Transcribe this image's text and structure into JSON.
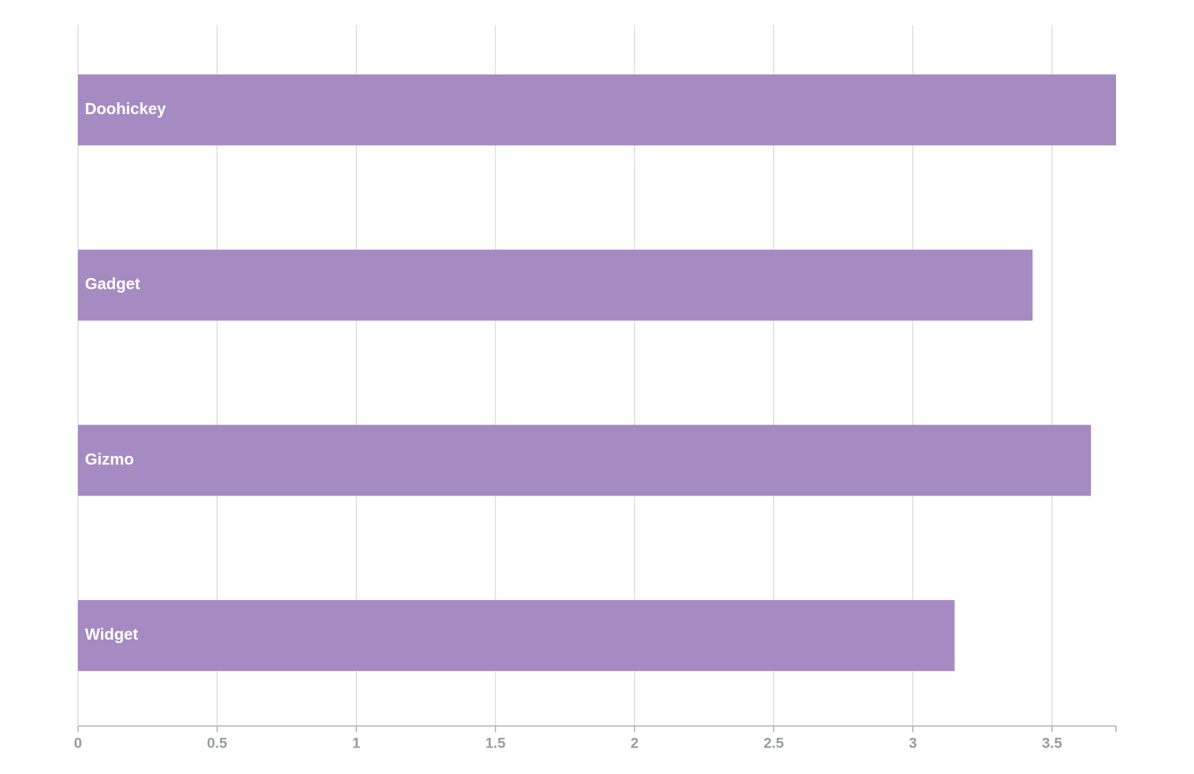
{
  "chart_data": {
    "type": "bar",
    "orientation": "horizontal",
    "categories": [
      "Doohickey",
      "Gadget",
      "Gizmo",
      "Widget"
    ],
    "values": [
      3.73,
      3.43,
      3.64,
      3.15
    ],
    "color": "#a58bc2",
    "xlim": [
      0,
      3.73
    ],
    "xticks": [
      0,
      0.5,
      1,
      1.5,
      2,
      2.5,
      3,
      3.5
    ],
    "grid": true
  }
}
